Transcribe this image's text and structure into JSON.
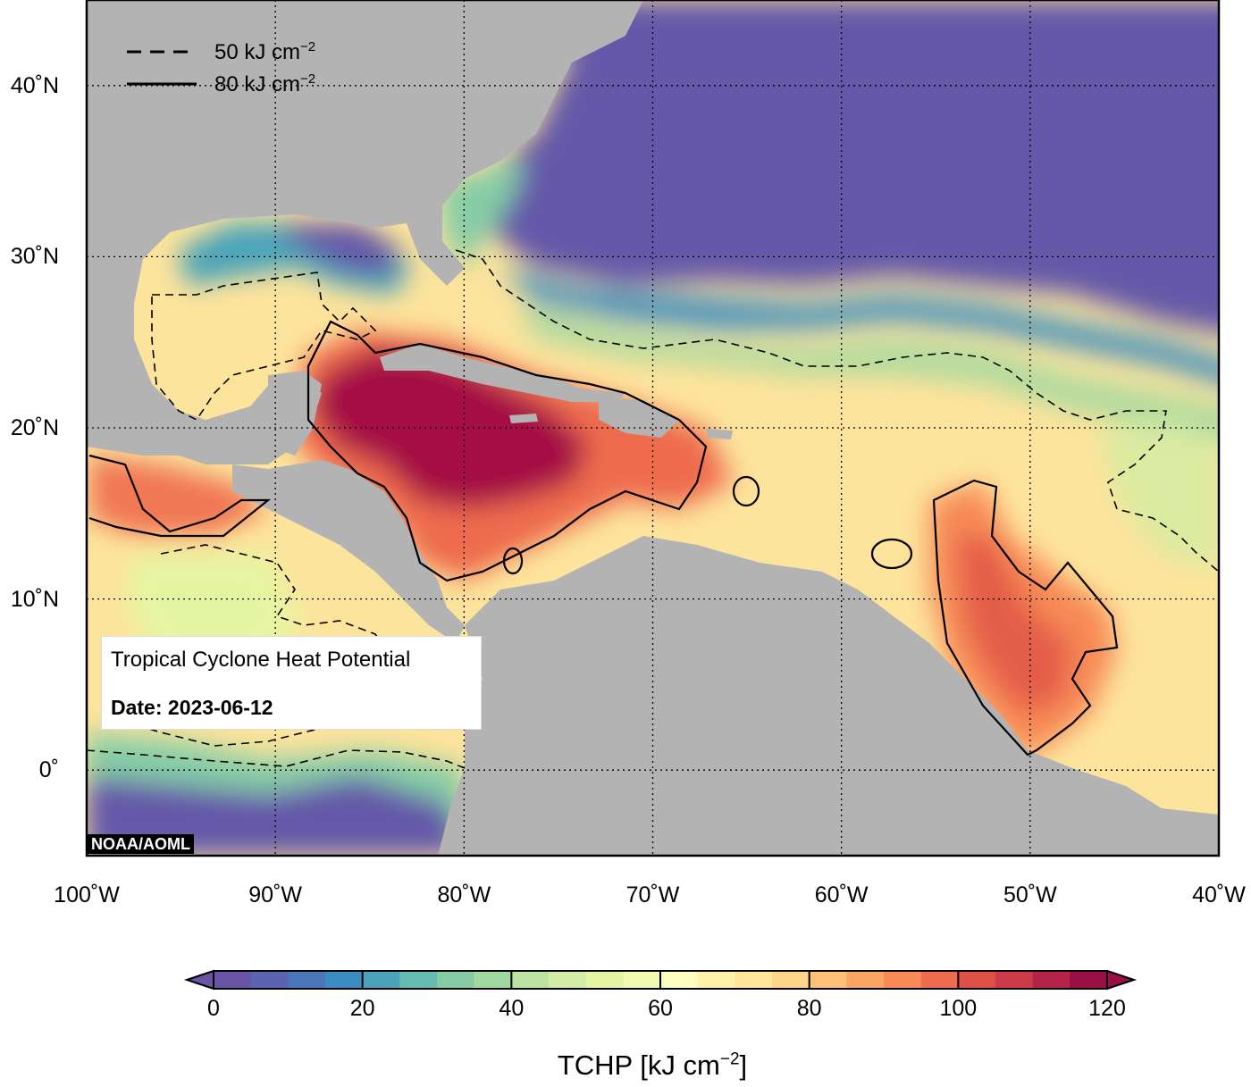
{
  "map": {
    "title": "Tropical Cyclone Heat Potential",
    "date_text": "Date: 2023-06-12",
    "credit": "NOAA/AOML",
    "lon_labels": [
      "100˚W",
      "90˚W",
      "80˚W",
      "70˚W",
      "60˚W",
      "50˚W",
      "40˚W"
    ],
    "lat_labels": [
      "40˚N",
      "30˚N",
      "20˚N",
      "10˚N",
      "0˚"
    ],
    "lon_range": [
      -100,
      -40
    ],
    "lat_range": [
      -5,
      45
    ],
    "ocean_color": "#a50f45",
    "land_color": "#b3b3b3",
    "cold_color": "#6558a8"
  },
  "legend": {
    "dashed_label": "50 kJ cm",
    "solid_label": "80 kJ cm",
    "superscript": "−2"
  },
  "colorbar": {
    "title": "TCHP [kJ cm",
    "title_superscript": "−2",
    "title_suffix": "]",
    "ticks": [
      "0",
      "20",
      "40",
      "60",
      "80",
      "100",
      "120"
    ],
    "range": [
      0,
      120
    ],
    "step": 5,
    "colors": [
      "#6a54a4",
      "#5b64b3",
      "#4a77ba",
      "#3a8cc0",
      "#4aa3ba",
      "#66bcb0",
      "#85cca6",
      "#a1d89f",
      "#bbe39f",
      "#d2eca3",
      "#e6f5a2",
      "#f2f9b0",
      "#fdfdc0",
      "#fef2a8",
      "#fee59a",
      "#fed589",
      "#fdc077",
      "#fca666",
      "#f78a57",
      "#ee6c4d",
      "#df5146",
      "#cd3a49",
      "#b52448",
      "#9a0f45"
    ]
  }
}
